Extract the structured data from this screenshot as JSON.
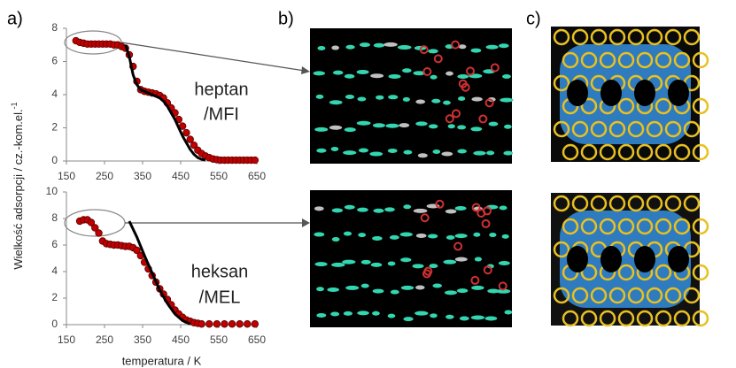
{
  "figure": {
    "panels": [
      "a)",
      "b)",
      "c)"
    ],
    "y_label": "Wielkość adsorpcji / cz.-kom.el.",
    "y_label_superscript": "-1"
  },
  "chart_data": [
    {
      "type": "scatter",
      "annotations": [
        "heptan",
        "/MFI"
      ],
      "xlim": [
        150,
        650
      ],
      "xticks": [
        150,
        250,
        350,
        450,
        550,
        650
      ],
      "ylim": [
        0,
        8
      ],
      "yticks": [
        0,
        2,
        4,
        6,
        8
      ],
      "series": [
        {
          "type": "scatter",
          "color": "#c00000",
          "x": [
            175,
            185,
            195,
            205,
            215,
            225,
            235,
            245,
            255,
            265,
            275,
            285,
            295,
            305,
            315,
            325,
            335,
            345,
            355,
            365,
            375,
            385,
            395,
            405,
            415,
            425,
            435,
            445,
            455,
            465,
            475,
            485,
            495,
            505,
            515,
            525,
            535,
            545,
            555,
            565,
            575,
            585,
            595,
            605,
            615,
            625,
            635,
            645
          ],
          "values": [
            7.25,
            7.15,
            7.1,
            7.05,
            7.05,
            7.05,
            7.05,
            7.05,
            7.05,
            7.05,
            7.0,
            7.0,
            6.9,
            6.8,
            6.4,
            5.7,
            4.8,
            4.3,
            4.2,
            4.15,
            4.1,
            4.05,
            3.95,
            3.8,
            3.5,
            3.2,
            2.9,
            2.5,
            2.1,
            1.7,
            1.3,
            0.95,
            0.65,
            0.45,
            0.3,
            0.2,
            0.12,
            0.08,
            0.05,
            0.05,
            0.05,
            0.05,
            0.05,
            0.05,
            0.05,
            0.05,
            0.05,
            0.05
          ]
        },
        {
          "type": "line",
          "color": "#000000",
          "x": [
            305,
            315,
            325,
            335,
            345,
            355,
            365,
            375,
            385,
            395,
            405,
            415,
            425,
            435,
            445,
            455,
            465,
            475,
            485,
            495,
            505,
            515
          ],
          "values": [
            7.0,
            6.3,
            5.2,
            4.6,
            4.3,
            4.2,
            4.1,
            4.0,
            3.9,
            3.8,
            3.6,
            3.3,
            2.9,
            2.5,
            2.0,
            1.5,
            1.1,
            0.7,
            0.4,
            0.2,
            0.1,
            0.05
          ]
        }
      ]
    },
    {
      "type": "scatter",
      "annotations": [
        "heksan",
        "/MEL"
      ],
      "x_label": "temperatura / K",
      "xlim": [
        150,
        650
      ],
      "xticks": [
        150,
        250,
        350,
        450,
        550,
        650
      ],
      "ylim": [
        0,
        10
      ],
      "yticks": [
        0,
        2,
        4,
        6,
        8,
        10
      ],
      "series": [
        {
          "type": "scatter",
          "color": "#c00000",
          "x": [
            185,
            195,
            205,
            215,
            225,
            235,
            245,
            255,
            265,
            275,
            285,
            295,
            305,
            315,
            325,
            335,
            345,
            355,
            365,
            375,
            385,
            395,
            405,
            415,
            425,
            435,
            445,
            455,
            465,
            475,
            485,
            495,
            505,
            525,
            545,
            565,
            585,
            605,
            625,
            645
          ],
          "values": [
            7.8,
            7.9,
            7.9,
            7.7,
            7.3,
            6.9,
            6.3,
            6.1,
            6.05,
            6.0,
            6.0,
            5.95,
            5.9,
            5.9,
            5.8,
            5.6,
            5.2,
            4.7,
            4.2,
            3.7,
            3.2,
            2.7,
            2.3,
            1.9,
            1.5,
            1.1,
            0.8,
            0.55,
            0.35,
            0.25,
            0.15,
            0.1,
            0.05,
            0.05,
            0.05,
            0.05,
            0.05,
            0.05,
            0.05,
            0.05
          ]
        },
        {
          "type": "line",
          "color": "#000000",
          "x": [
            315,
            335,
            355,
            375,
            395,
            415,
            435,
            455,
            475
          ],
          "values": [
            7.8,
            6.6,
            5.2,
            3.9,
            2.6,
            1.6,
            0.8,
            0.3,
            0.05
          ]
        }
      ]
    }
  ]
}
